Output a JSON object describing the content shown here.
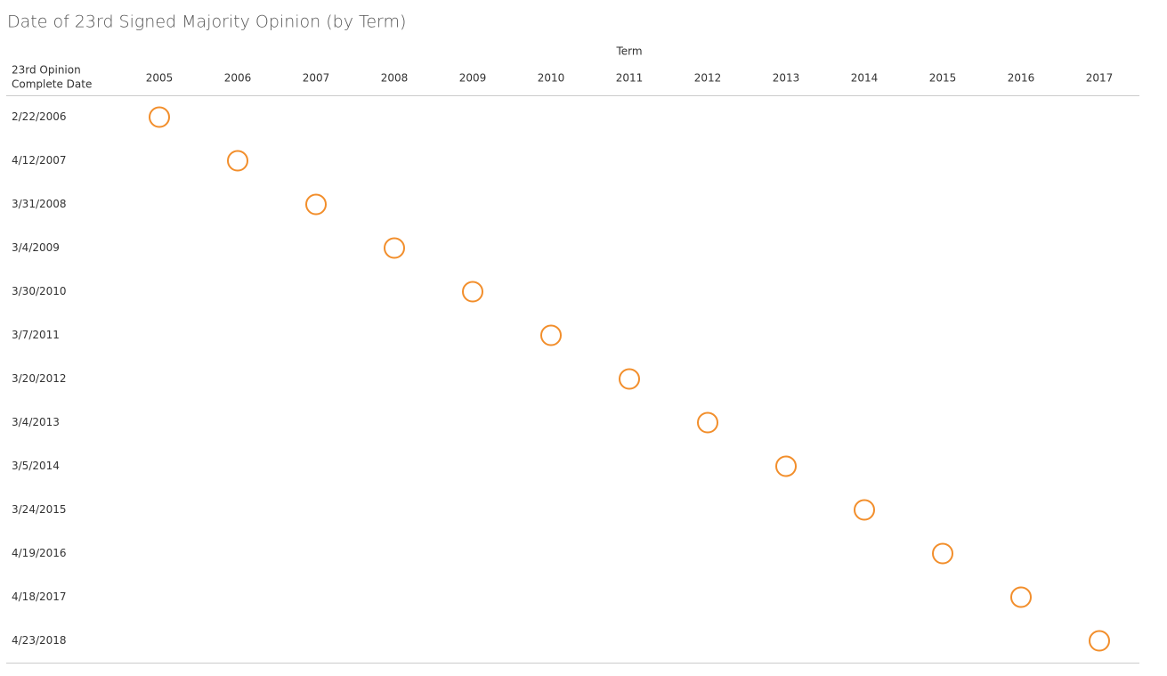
{
  "chart_data": {
    "type": "matrix",
    "title": "Date of 23rd Signed Majority Opinion (by Term)",
    "column_header": "Term",
    "row_header": [
      "23rd Opinion",
      "Complete Date"
    ],
    "categories": [
      2005,
      2006,
      2007,
      2008,
      2009,
      2010,
      2011,
      2012,
      2013,
      2014,
      2015,
      2016,
      2017
    ],
    "rows": [
      "2/22/2006",
      "4/12/2007",
      "3/31/2008",
      "3/4/2009",
      "3/30/2010",
      "3/7/2011",
      "3/20/2012",
      "3/4/2013",
      "3/5/2014",
      "3/24/2015",
      "4/19/2016",
      "4/18/2017",
      "4/23/2018"
    ],
    "values": [
      2005,
      2006,
      2007,
      2008,
      2009,
      2010,
      2011,
      2012,
      2013,
      2014,
      2015,
      2016,
      2017
    ],
    "color": "#f28e2b"
  }
}
